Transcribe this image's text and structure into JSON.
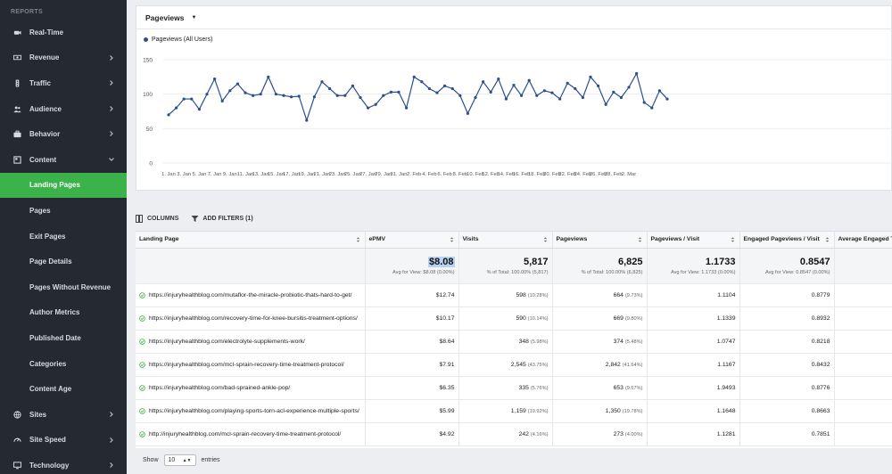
{
  "sidebar": {
    "section_label": "REPORTS",
    "items": [
      {
        "label": "Real-Time",
        "icon": "camera-icon",
        "chevron": false
      },
      {
        "label": "Revenue",
        "icon": "money-icon",
        "chevron": true
      },
      {
        "label": "Traffic",
        "icon": "traffic-light-icon",
        "chevron": true
      },
      {
        "label": "Audience",
        "icon": "users-icon",
        "chevron": true
      },
      {
        "label": "Behavior",
        "icon": "briefcase-icon",
        "chevron": true
      },
      {
        "label": "Content",
        "icon": "content-icon",
        "chevron": true
      }
    ],
    "sub_items": [
      {
        "label": "Landing Pages",
        "active": true
      },
      {
        "label": "Pages"
      },
      {
        "label": "Exit Pages"
      },
      {
        "label": "Page Details"
      },
      {
        "label": "Pages Without Revenue"
      },
      {
        "label": "Author Metrics"
      },
      {
        "label": "Published Date"
      },
      {
        "label": "Categories"
      },
      {
        "label": "Content Age"
      }
    ],
    "bottom_items": [
      {
        "label": "Sites",
        "icon": "globe-icon"
      },
      {
        "label": "Site Speed",
        "icon": "speedometer-icon"
      },
      {
        "label": "Technology",
        "icon": "monitor-icon"
      }
    ]
  },
  "chart_panel": {
    "metric_label": "Pageviews",
    "legend_label": "Pageviews (All Users)"
  },
  "chart_data": {
    "type": "line",
    "series": [
      {
        "name": "Pageviews (All Users)",
        "color": "#2c4f8f",
        "values": [
          70,
          80,
          93,
          93,
          78,
          100,
          122,
          90,
          105,
          115,
          102,
          98,
          100,
          125,
          100,
          98,
          96,
          97,
          62,
          96,
          118,
          108,
          98,
          98,
          112,
          95,
          80,
          85,
          98,
          103,
          103,
          80,
          125,
          118,
          108,
          102,
          112,
          108,
          98,
          72,
          95,
          118,
          103,
          122,
          93,
          113,
          98,
          120,
          98,
          105,
          102,
          93,
          116,
          108,
          95,
          125,
          112,
          85,
          103,
          95,
          110,
          130,
          88,
          80,
          105,
          93
        ]
      }
    ],
    "x_tick_labels": [
      "1. Jan",
      "3. Jan",
      "5. Jan",
      "7. Jan",
      "9. Jan",
      "11. Jan",
      "13. Jan",
      "15. Jan",
      "17. Jan",
      "19. Jan",
      "21. Jan",
      "23. Jan",
      "25. Jan",
      "27. Jan",
      "29. Jan",
      "31. Jan",
      "2. Feb",
      "4. Feb",
      "6. Feb",
      "8. Feb",
      "10. Feb",
      "12. Feb",
      "14. Feb",
      "16. Feb",
      "18. Feb",
      "20. Feb",
      "22. Feb",
      "24. Feb",
      "26. Feb",
      "28. Feb",
      "2. Mar"
    ],
    "y_ticks": [
      0,
      50,
      100,
      150
    ],
    "ylim": [
      0,
      150
    ],
    "grid": true
  },
  "toolbar": {
    "columns_label": "COLUMNS",
    "filters_label": "ADD FILTERS (1)"
  },
  "table": {
    "headers": [
      "Landing Page",
      "ePMV",
      "Visits",
      "Pageviews",
      "Pageviews / Visit",
      "Engaged Pageviews / Visit",
      "Average Engaged Ti"
    ],
    "totals": [
      {
        "main": "",
        "sub": ""
      },
      {
        "main": "$8.08",
        "sub": "Avg for View: $8.08 (0.00%)"
      },
      {
        "main": "5,817",
        "sub": "% of Total: 100.00% (5,817)"
      },
      {
        "main": "6,825",
        "sub": "% of Total: 100.00% (6,825)"
      },
      {
        "main": "1.1733",
        "sub": "Avg for View: 1.1733 (0.00%)"
      },
      {
        "main": "0.8547",
        "sub": "Avg for View: 0.8547 (0.00%)"
      },
      {
        "main": "",
        "sub": ""
      }
    ],
    "rows": [
      {
        "page": "https://injuryhealthblog.com/mutaflor-the-miracle-probiotic-thats-hard-to-get/",
        "epmv": "$12.74",
        "visits": "598",
        "visits_pct": "(10.28%)",
        "pageviews": "664",
        "pv_pct": "(9.73%)",
        "ppv": "1.1104",
        "eppv": "0.8779"
      },
      {
        "page": "https://injuryhealthblog.com/recovery-time-for-knee-bursitis-treatment-options/",
        "epmv": "$10.17",
        "visits": "590",
        "visits_pct": "(10.14%)",
        "pageviews": "669",
        "pv_pct": "(9.80%)",
        "ppv": "1.1339",
        "eppv": "0.8932"
      },
      {
        "page": "https://injuryhealthblog.com/electrolyte-supplements-work/",
        "epmv": "$8.64",
        "visits": "348",
        "visits_pct": "(5.98%)",
        "pageviews": "374",
        "pv_pct": "(5.48%)",
        "ppv": "1.0747",
        "eppv": "0.8218"
      },
      {
        "page": "https://injuryhealthblog.com/mcl-sprain-recovery-time-treatment-protocol/",
        "epmv": "$7.91",
        "visits": "2,545",
        "visits_pct": "(43.75%)",
        "pageviews": "2,842",
        "pv_pct": "(41.64%)",
        "ppv": "1.1167",
        "eppv": "0.8432"
      },
      {
        "page": "https://injuryhealthblog.com/bad-sprained-ankle-pop/",
        "epmv": "$6.35",
        "visits": "335",
        "visits_pct": "(5.76%)",
        "pageviews": "653",
        "pv_pct": "(9.57%)",
        "ppv": "1.9493",
        "eppv": "0.8776"
      },
      {
        "page": "https://injuryhealthblog.com/playing-sports-torn-acl-experience-multiple-sports/",
        "epmv": "$5.99",
        "visits": "1,159",
        "visits_pct": "(19.92%)",
        "pageviews": "1,350",
        "pv_pct": "(19.78%)",
        "ppv": "1.1648",
        "eppv": "0.8663"
      },
      {
        "page": "http://injuryhealthblog.com/mcl-sprain-recovery-time-treatment-protocol/",
        "epmv": "$4.92",
        "visits": "242",
        "visits_pct": "(4.16%)",
        "pageviews": "273",
        "pv_pct": "(4.00%)",
        "ppv": "1.1281",
        "eppv": "0.7851"
      }
    ]
  },
  "footer": {
    "show_label": "Show",
    "entries_value": "10",
    "entries_label": "entries"
  }
}
